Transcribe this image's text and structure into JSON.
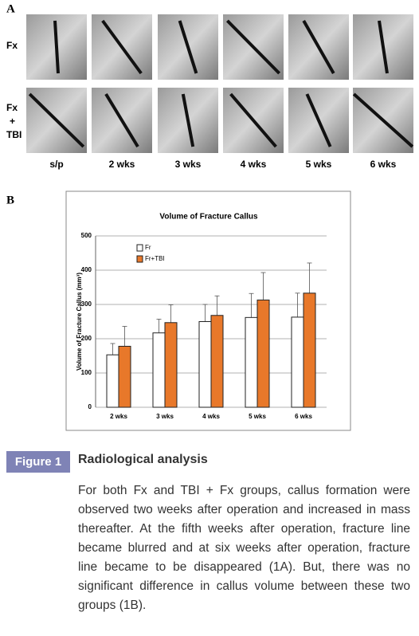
{
  "panel_a": {
    "label": "A",
    "row_labels": [
      "Fx",
      "Fx\n+\nTBI"
    ],
    "column_labels": [
      "s/p",
      "2 wks",
      "3 wks",
      "4 wks",
      "5 wks",
      "6 wks"
    ]
  },
  "panel_b": {
    "label": "B"
  },
  "chart_data": {
    "type": "bar",
    "title": "Volume of Fracture Callus",
    "y_label": "Volume of Fracture Callus (mm³)",
    "categories": [
      "2 wks",
      "3 wks",
      "4 wks",
      "5 wks",
      "6 wks"
    ],
    "series": [
      {
        "name": "Fr",
        "color": "#ffffff",
        "values": [
          153,
          217,
          250,
          262,
          263
        ],
        "errors": [
          33,
          40,
          50,
          70,
          70
        ]
      },
      {
        "name": "Fr+TBI",
        "color": "#e8782a",
        "values": [
          178,
          247,
          268,
          313,
          333
        ],
        "errors": [
          58,
          52,
          57,
          80,
          88
        ]
      }
    ],
    "ylim": [
      0,
      500
    ],
    "yticks": [
      0,
      100,
      200,
      300,
      400,
      500
    ],
    "grid": true,
    "legend": "upper-left"
  },
  "caption": {
    "figure_label": "Figure 1",
    "title": "Radiological analysis",
    "text": "For both Fx and TBI + Fx groups, callus formation were observed two weeks after operation and increased in mass thereafter. At the fifth weeks after operation, fracture line became blurred and at six weeks after operation, fracture line became to be disappeared (1A). But, there was no significant difference in callus volume between these two groups (1B)."
  }
}
